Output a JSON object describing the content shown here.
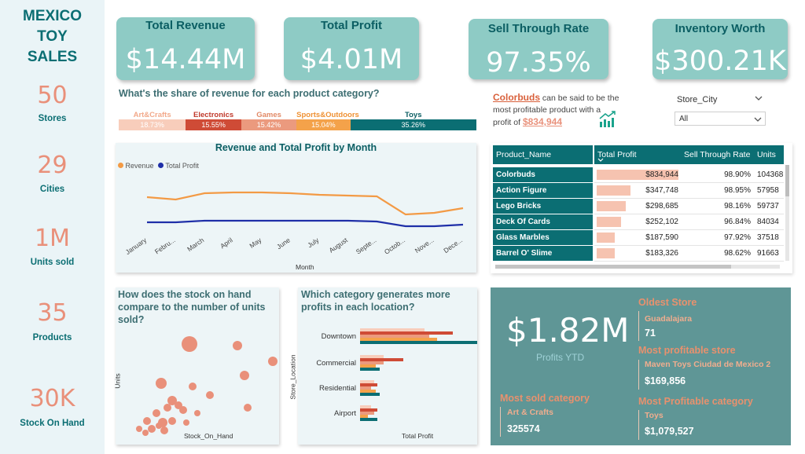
{
  "sidebar": {
    "title_lines": [
      "MEXICO",
      "TOY",
      "SALES"
    ],
    "kpis": [
      {
        "value": "50",
        "label": "Stores"
      },
      {
        "value": "29",
        "label": "Cities"
      },
      {
        "value": "1M",
        "label": "Units sold"
      },
      {
        "value": "35",
        "label": "Products"
      },
      {
        "value": "30K",
        "label": "Stock On Hand"
      }
    ]
  },
  "cards": [
    {
      "title": "Total Revenue",
      "value": "$14.44M"
    },
    {
      "title": "Total Profit",
      "value": "$4.01M"
    },
    {
      "title": "Sell Through Rate",
      "value": "97.35%"
    },
    {
      "title": "Inventory Worth",
      "value": "$300.21K"
    }
  ],
  "share": {
    "question": "What's the share of revenue for each product category?",
    "segments": [
      {
        "label": "Art&Crafts",
        "pct": "18.73%",
        "value": 18.73,
        "color": "#f8cdbb",
        "label_color": "#f2a98a"
      },
      {
        "label": "Electronics",
        "pct": "15.55%",
        "value": 15.55,
        "color": "#cf4b36",
        "label_color": "#c0392b"
      },
      {
        "label": "Games",
        "pct": "15.42%",
        "value": 15.42,
        "color": "#eb9a7e",
        "label_color": "#e28a67"
      },
      {
        "label": "Sports&Outdoors",
        "pct": "15.04%",
        "value": 15.04,
        "color": "#f4a24a",
        "label_color": "#ef9133"
      },
      {
        "label": "Toys",
        "pct": "35.26%",
        "value": 35.26,
        "color": "#0b6e73",
        "label_color": "#0b5e63"
      }
    ]
  },
  "insight": {
    "product": "Colorbuds",
    "text1": " can be said to be the",
    "text2": "most profitable product with a",
    "text3": "profit of",
    "profit": "$834,944"
  },
  "filter": {
    "label": "Store_City",
    "value": "All"
  },
  "line_chart": {
    "title": "Revenue and Total Profit by Month",
    "xlabel": "Month",
    "legend": [
      {
        "name": "Revenue",
        "color": "#f39a45"
      },
      {
        "name": "Total Profit",
        "color": "#1f2fa8"
      }
    ],
    "months": [
      "January",
      "Febru...",
      "March",
      "April",
      "May",
      "June",
      "July",
      "August",
      "Septe...",
      "Octob...",
      "Nove...",
      "Dece..."
    ]
  },
  "table": {
    "headers": [
      "Product_Name",
      "Total Profit",
      "Sell Through Rate",
      "Units"
    ],
    "rows": [
      {
        "name": "Colorbuds",
        "profit": "$834,944",
        "profit_value": 834944,
        "rate": "98.90%",
        "units": "104368"
      },
      {
        "name": "Action Figure",
        "profit": "$347,748",
        "profit_value": 347748,
        "rate": "98.95%",
        "units": "57958"
      },
      {
        "name": "Lego Bricks",
        "profit": "$298,685",
        "profit_value": 298685,
        "rate": "98.16%",
        "units": "59737"
      },
      {
        "name": "Deck Of Cards",
        "profit": "$252,102",
        "profit_value": 252102,
        "rate": "96.84%",
        "units": "84034"
      },
      {
        "name": "Glass Marbles",
        "profit": "$187,590",
        "profit_value": 187590,
        "rate": "97.92%",
        "units": "37518"
      },
      {
        "name": "Barrel O' Slime",
        "profit": "$183,326",
        "profit_value": 183326,
        "rate": "98.62%",
        "units": "91663"
      }
    ]
  },
  "scatter": {
    "question": "How does the stock on hand compare to the number of units sold?",
    "xlabel": "Stock_On_Hand",
    "ylabel": "Units"
  },
  "bar_chart": {
    "question": "Which category generates more profits in each location?",
    "xlabel": "Total Profit",
    "ylabel": "Store_Location",
    "locations": [
      "Downtown",
      "Commercial",
      "Residential",
      "Airport"
    ]
  },
  "highlights": {
    "profit_value": "$1.82M",
    "profit_label": "Profits YTD",
    "oldest_title": "Oldest Store",
    "oldest_name": "Guadalajara",
    "oldest_value": "71",
    "most_profitable_title": "Most profitable store",
    "most_profitable_name": "Maven Toys Ciudad de Mexico 2",
    "most_profitable_value": "$169,856",
    "most_sold_title": "Most sold category",
    "most_sold_name": "Art & Crafts",
    "most_sold_value": "325574",
    "profitable_cat_title": "Most Profitable category",
    "profitable_cat_name": "Toys",
    "profitable_cat_value": "$1,079,527"
  },
  "colors": {
    "teal": "#0b6e73",
    "card": "#8ecbc5",
    "accent": "#e9907a",
    "panel": "#5f9696"
  }
}
